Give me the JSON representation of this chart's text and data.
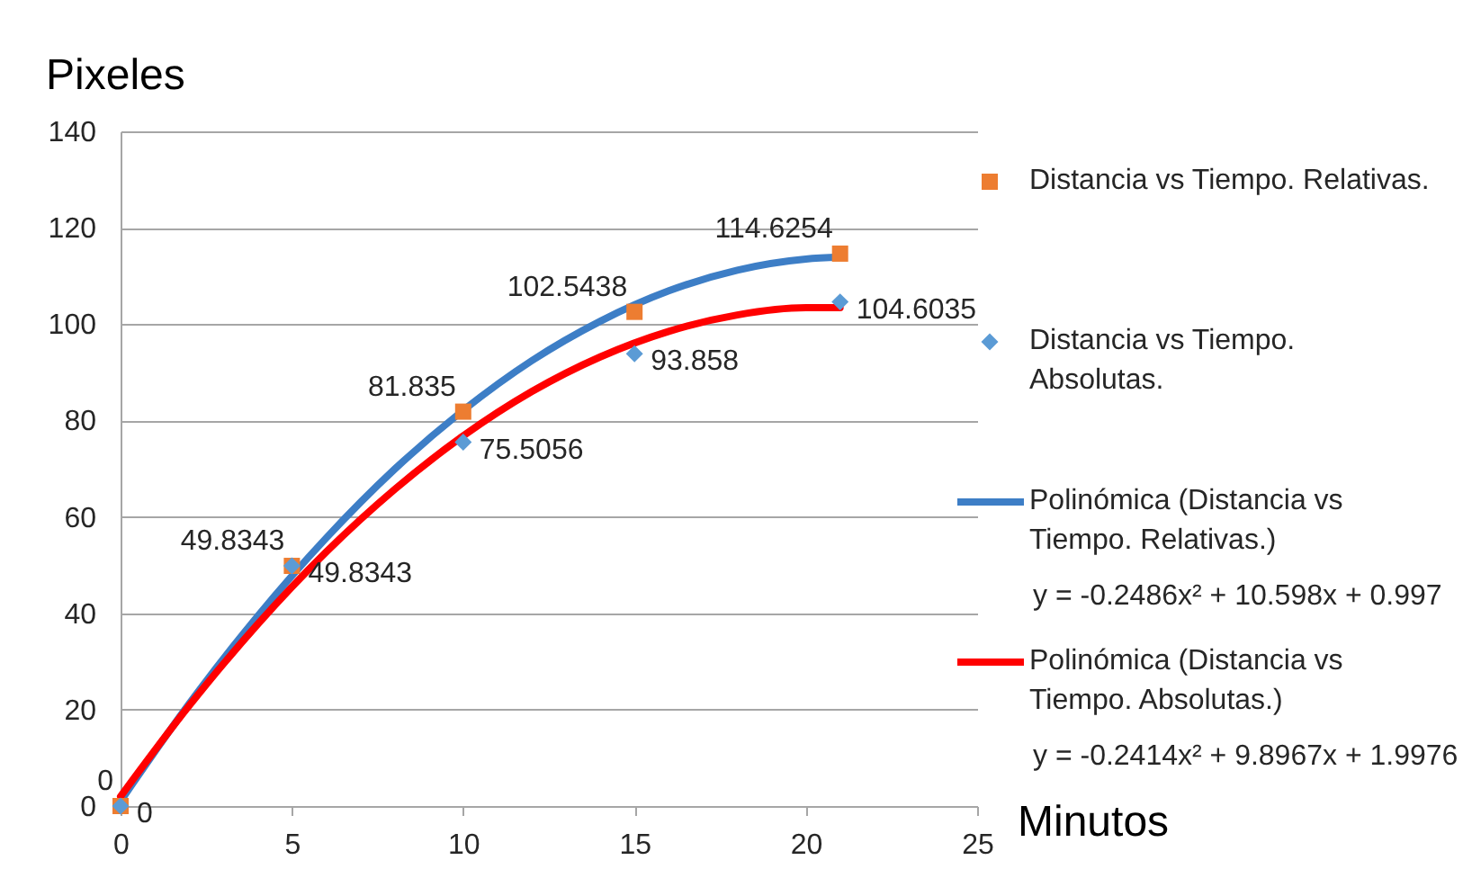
{
  "chart_data": {
    "type": "scatter",
    "xlabel": "Minutos",
    "ylabel": "Pixeles",
    "xlim": [
      0,
      25
    ],
    "xticks": [
      0,
      5,
      10,
      15,
      20,
      25
    ],
    "ylim": [
      0,
      140
    ],
    "yticks": [
      0,
      20,
      40,
      60,
      80,
      100,
      120,
      140
    ],
    "grid": "y",
    "legend": "right",
    "annotations": [
      "y = -0.2486x² + 10.598x + 0.997",
      "y = -0.2414x² + 9.8967x + 1.9976"
    ],
    "series": [
      {
        "name": "Distancia vs Tiempo. Relativas.",
        "marker": "square",
        "color": "#ed7d31",
        "data_labels": true,
        "x": [
          0,
          5,
          10,
          15,
          21
        ],
        "values": [
          0,
          49.8343,
          81.835,
          102.5438,
          114.6254
        ]
      },
      {
        "name": "Distancia vs Tiempo. Absolutas.",
        "marker": "diamond",
        "color": "#5b9bd5",
        "data_labels": true,
        "x": [
          0,
          5,
          10,
          15,
          21
        ],
        "values": [
          0,
          49.8343,
          75.5056,
          93.858,
          104.6035
        ]
      },
      {
        "name": "Polinómica (Distancia vs Tiempo. Relativas.)",
        "type": "line",
        "color": "#3d7ec6",
        "x": [
          0,
          2,
          4,
          6,
          8,
          10,
          12,
          14,
          16,
          18,
          20,
          21
        ],
        "values": [
          1.0,
          21.2,
          39.4,
          55.6,
          69.9,
          82.1,
          92.4,
          100.6,
          106.9,
          111.2,
          113.5,
          113.9
        ]
      },
      {
        "name": "Polinómica (Distancia vs Tiempo. Absolutas.)",
        "type": "line",
        "color": "#ff0000",
        "x": [
          0,
          2,
          4,
          6,
          8,
          10,
          12,
          14,
          16,
          18,
          20,
          21
        ],
        "values": [
          2.0,
          20.8,
          37.7,
          52.7,
          65.7,
          76.8,
          86.0,
          93.2,
          98.5,
          101.9,
          103.4,
          103.4
        ]
      }
    ]
  }
}
